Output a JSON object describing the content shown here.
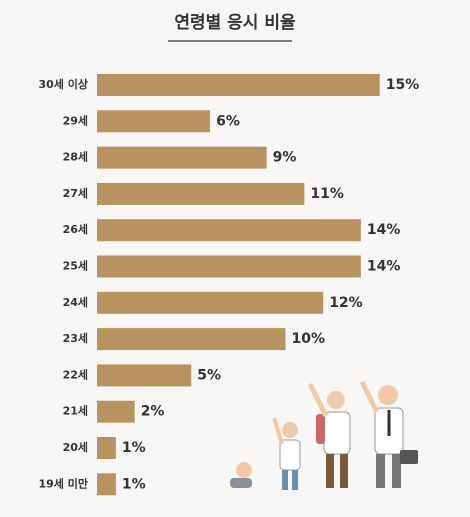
{
  "chart_data": {
    "type": "bar",
    "orientation": "horizontal",
    "title": "연령별 응시 비율",
    "categories": [
      "30세 이상",
      "29세",
      "28세",
      "27세",
      "26세",
      "25세",
      "24세",
      "23세",
      "22세",
      "21세",
      "20세",
      "19세 미만"
    ],
    "values": [
      15,
      6,
      9,
      11,
      14,
      14,
      12,
      10,
      5,
      2,
      1,
      1
    ],
    "value_labels": [
      "15%",
      "6%",
      "9%",
      "11%",
      "14%",
      "14%",
      "12%",
      "10%",
      "5%",
      "2%",
      "1%",
      "1%"
    ],
    "color": "#b8925f"
  }
}
